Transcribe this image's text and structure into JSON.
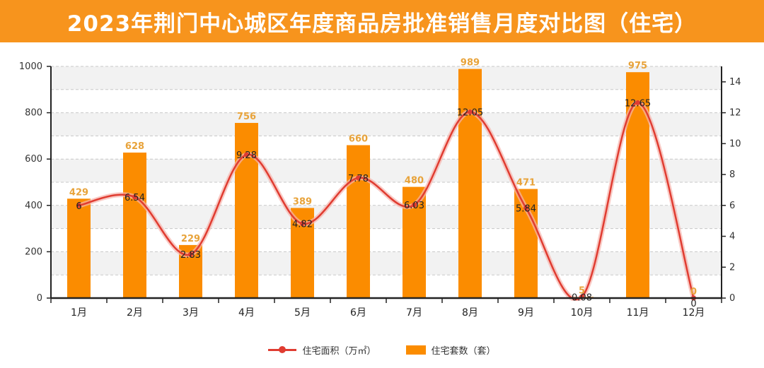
{
  "title": "2023年荆门中心城区年度商品房批准销售月度对比图（住宅）",
  "legend": {
    "line_label": "住宅面积（万㎡）",
    "bar_label": "住宅套数（套）"
  },
  "colors": {
    "title_bg": "#f7941d",
    "bar": "#fb8c00",
    "bar_label": "#e8a33a",
    "line": "#e03c31",
    "line_label": "#222222"
  },
  "chart_data": {
    "type": "bar",
    "categories": [
      "1月",
      "2月",
      "3月",
      "4月",
      "5月",
      "6月",
      "7月",
      "8月",
      "9月",
      "10月",
      "11月",
      "12月"
    ],
    "series": [
      {
        "name": "住宅套数（套）",
        "type": "bar",
        "axis": "left",
        "values": [
          429,
          628,
          229,
          756,
          389,
          660,
          480,
          989,
          471,
          5,
          975,
          0
        ],
        "labels": [
          "429",
          "628",
          "229",
          "756",
          "389",
          "660",
          "480",
          "989",
          "471",
          "5",
          "975",
          "0"
        ]
      },
      {
        "name": "住宅面积（万㎡）",
        "type": "line",
        "axis": "right",
        "values": [
          6,
          6.54,
          2.83,
          9.28,
          4.82,
          7.78,
          6.03,
          12.05,
          5.84,
          0.08,
          12.65,
          0
        ],
        "labels": [
          "6",
          "6.54",
          "2.83",
          "9.28",
          "4.82",
          "7.78",
          "6.03",
          "12.05",
          "5.84",
          "0.08",
          "12.65",
          "0"
        ]
      }
    ],
    "y_left": {
      "lim": [
        0,
        1000
      ],
      "ticks": [
        "0",
        "200",
        "400",
        "600",
        "800",
        "1000"
      ]
    },
    "y_right": {
      "lim": [
        0,
        15
      ],
      "ticks": [
        "0",
        "2",
        "4",
        "6",
        "8",
        "10",
        "12",
        "14"
      ]
    },
    "grid": true,
    "legend_position": "bottom"
  }
}
